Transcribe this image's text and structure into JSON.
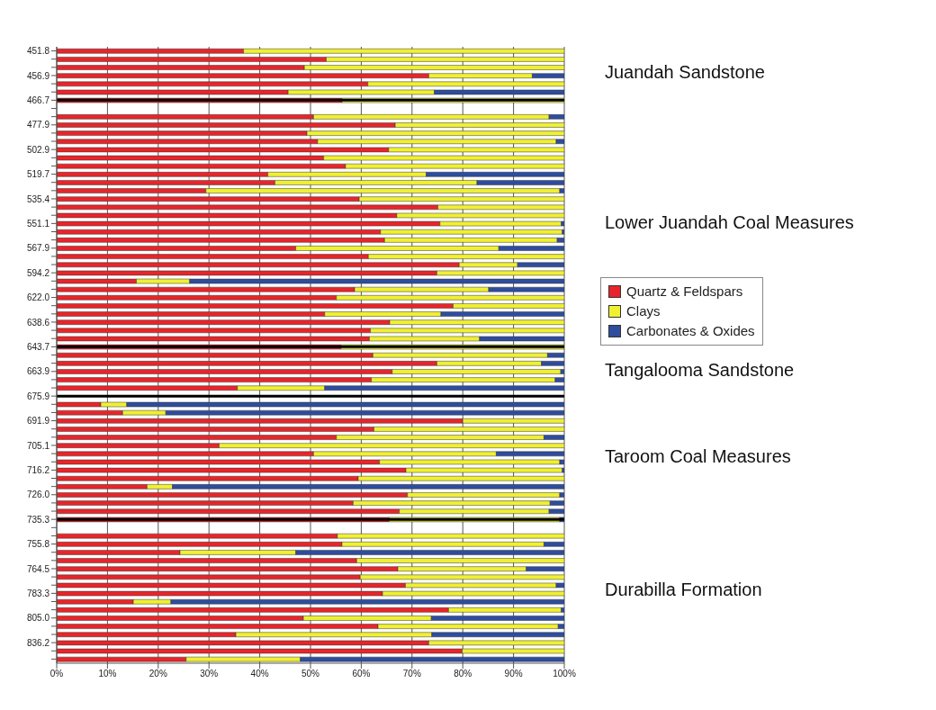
{
  "chart_data": {
    "type": "bar",
    "orientation": "horizontal",
    "stacked": true,
    "categories": [
      "451.8",
      null,
      null,
      "456.9",
      null,
      null,
      "466.7",
      null,
      null,
      "477.9",
      null,
      null,
      "502.9",
      null,
      null,
      "519.7",
      null,
      null,
      "535.4",
      null,
      null,
      "551.1",
      null,
      null,
      "567.9",
      null,
      null,
      "594.2",
      null,
      null,
      "622.0",
      null,
      null,
      "638.6",
      null,
      null,
      "643.7",
      null,
      null,
      "663.9",
      null,
      null,
      "675.9",
      null,
      null,
      "691.9",
      null,
      null,
      "705.1",
      null,
      null,
      "716.2",
      null,
      null,
      "726.0",
      null,
      null,
      "735.3",
      null,
      null,
      "755.8",
      null,
      null,
      "764.5",
      null,
      null,
      "783.3",
      null,
      null,
      "805.0",
      null,
      null,
      "836.2",
      null,
      null
    ],
    "series": [
      {
        "name": "Quartz & Feldspars",
        "color": "#e8252a",
        "values": [
          36.8,
          53.1,
          48.8,
          73.3,
          61.3,
          45.6,
          56.2,
          null,
          50.6,
          66.7,
          49.3,
          51.4,
          65.4,
          52.6,
          56.9,
          41.6,
          43.0,
          29.4,
          59.6,
          75.1,
          67.0,
          75.5,
          63.8,
          64.6,
          47.1,
          61.4,
          79.3,
          74.9,
          15.7,
          58.7,
          55.1,
          78.1,
          52.8,
          65.6,
          61.8,
          61.6,
          56.0,
          62.3,
          74.9,
          66.1,
          62.0,
          35.6,
          null,
          8.7,
          13.0,
          80.0,
          62.5,
          55.1,
          32.0,
          50.6,
          63.6,
          68.8,
          59.4,
          17.8,
          69.1,
          58.4,
          67.5,
          65.5,
          null,
          55.3,
          56.2,
          24.3,
          59.1,
          67.2,
          59.8,
          68.7,
          64.2,
          15.1,
          77.2,
          48.6,
          63.3,
          35.3,
          73.3,
          79.9,
          25.5
        ]
      },
      {
        "name": "Clays",
        "color": "#f0f032",
        "values": [
          63.2,
          46.9,
          51.2,
          20.4,
          38.7,
          28.8,
          43.8,
          null,
          46.4,
          33.3,
          50.7,
          47.0,
          34.6,
          47.4,
          43.1,
          31.2,
          39.8,
          69.7,
          40.4,
          24.9,
          33.0,
          23.9,
          35.8,
          34.0,
          40.0,
          38.6,
          11.5,
          25.1,
          10.5,
          26.4,
          44.9,
          21.9,
          22.9,
          34.4,
          38.2,
          21.7,
          44.0,
          34.4,
          20.6,
          33.2,
          36.2,
          17.2,
          null,
          5.1,
          8.5,
          20.0,
          37.5,
          40.9,
          68.0,
          36.0,
          35.5,
          30.8,
          40.6,
          5.0,
          30.0,
          38.8,
          29.5,
          33.6,
          null,
          44.7,
          39.8,
          22.8,
          40.9,
          25.3,
          40.2,
          29.7,
          35.8,
          7.4,
          22.2,
          25.2,
          35.5,
          38.6,
          26.7,
          20.1,
          22.5
        ]
      },
      {
        "name": "Carbonates & Oxides",
        "color": "#2e4d9e",
        "values": [
          0,
          0,
          0,
          6.3,
          0,
          25.6,
          0,
          null,
          3.0,
          0,
          0,
          1.6,
          0,
          0,
          0,
          27.2,
          17.2,
          0.9,
          0,
          0,
          0,
          0.6,
          0.4,
          1.4,
          12.9,
          0,
          9.2,
          0,
          73.8,
          14.9,
          0,
          0,
          24.3,
          0,
          0,
          16.7,
          0,
          3.3,
          4.5,
          0.7,
          1.8,
          47.2,
          null,
          86.2,
          78.5,
          0,
          0,
          4.0,
          0,
          13.4,
          0.9,
          0.4,
          0,
          77.2,
          0.9,
          2.8,
          3.0,
          0.9,
          null,
          0,
          4.0,
          52.9,
          0,
          7.5,
          0,
          1.6,
          0,
          77.5,
          0.6,
          26.2,
          1.2,
          26.1,
          0,
          0,
          52.0
        ]
      }
    ],
    "xlim": [
      0,
      100
    ],
    "xticks": [
      {
        "value": 0,
        "label": "0%"
      },
      {
        "value": 10,
        "label": "10%"
      },
      {
        "value": 20,
        "label": "20%"
      },
      {
        "value": 30,
        "label": "30%"
      },
      {
        "value": 40,
        "label": "40%"
      },
      {
        "value": 50,
        "label": "50%"
      },
      {
        "value": 60,
        "label": "60%"
      },
      {
        "value": 70,
        "label": "70%"
      },
      {
        "value": 80,
        "label": "80%"
      },
      {
        "value": 90,
        "label": "90%"
      },
      {
        "value": 100,
        "label": "100%"
      }
    ],
    "grid": "x",
    "legend": "right",
    "ref_lines": [
      {
        "axis": "y",
        "value": "466.7",
        "color": "#000000"
      },
      {
        "axis": "y",
        "value": "643.7",
        "color": "#000000"
      },
      {
        "axis": "y",
        "value": "675.9",
        "color": "#000000"
      },
      {
        "axis": "y",
        "value": "735.3",
        "color": "#000000"
      }
    ],
    "annotations": [
      "Juandah Sandstone",
      "Lower Juandah Coal Measures",
      "Tangalooma Sandstone",
      "Taroom Coal Measures",
      "Durabilla Formation"
    ]
  }
}
